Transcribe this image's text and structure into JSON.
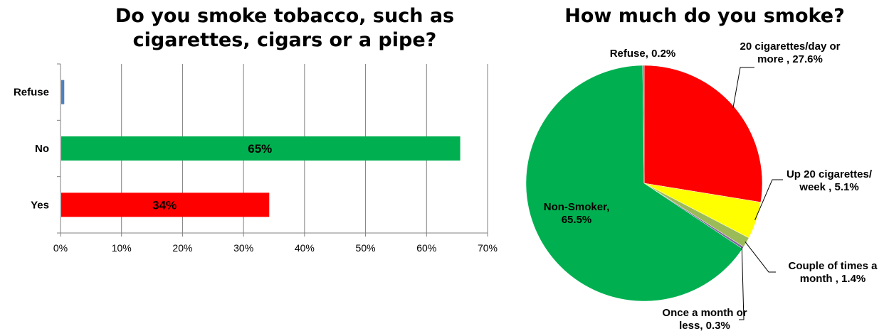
{
  "chart_data": [
    {
      "type": "bar",
      "orientation": "horizontal",
      "title": "Do you smoke tobacco, such as cigarettes, cigars or a pipe?",
      "title_lines": [
        "Do you smoke tobacco, such as",
        "cigarettes, cigars or a pipe?"
      ],
      "categories": [
        "Refuse",
        "No",
        "Yes"
      ],
      "values": [
        0.5,
        65.4,
        34.1
      ],
      "data_labels": [
        "",
        "65%",
        "34%"
      ],
      "colors": [
        "#4f81bd",
        "#00b050",
        "#ff0000"
      ],
      "xlim": [
        0,
        70
      ],
      "xticks": [
        "0%",
        "10%",
        "20%",
        "30%",
        "40%",
        "50%",
        "60%",
        "70%"
      ],
      "grid": true
    },
    {
      "type": "pie",
      "title": "How much do you smoke?",
      "slices": [
        {
          "label_lines": [
            "20 cigarettes/day  or",
            "more , 27.6%"
          ],
          "value": 27.6,
          "color": "#ff0000"
        },
        {
          "label_lines": [
            "Up 20 cigarettes/",
            "week , 5.1%"
          ],
          "value": 5.1,
          "color": "#ffff00"
        },
        {
          "label_lines": [
            "Couple of times a",
            "month , 1.4%"
          ],
          "value": 1.4,
          "color": "#9bbb59"
        },
        {
          "label_lines": [
            "Once a month  or",
            "less, 0.3%"
          ],
          "value": 0.3,
          "color": "#8064a2"
        },
        {
          "label_lines": [
            "Non-Smoker,",
            "65.5%"
          ],
          "value": 65.5,
          "color": "#00b050"
        },
        {
          "label_lines": [
            "Refuse, 0.2%"
          ],
          "value": 0.2,
          "color": "#4f81bd"
        }
      ]
    }
  ]
}
